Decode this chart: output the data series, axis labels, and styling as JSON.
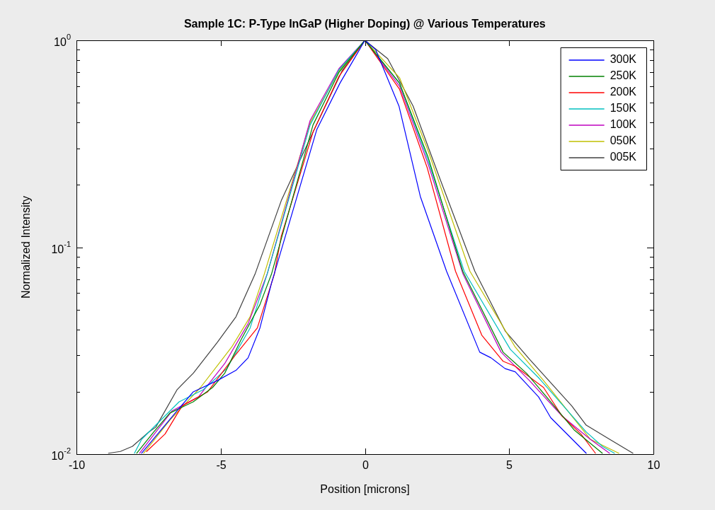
{
  "chart_data": {
    "type": "line",
    "title": "Sample 1C: P-Type InGaP (Higher Doping) @ Various Temperatures",
    "xlabel": "Position [microns]",
    "ylabel": "Normalized Intensity",
    "log": "y",
    "legend": "top right",
    "marker": "none",
    "line_style": "solid",
    "xlim": [
      -10,
      10
    ],
    "xticks": [
      -10,
      -5,
      0,
      5,
      10
    ],
    "ylim": [
      0.01,
      1
    ],
    "yticks": [
      {
        "value": 0.01,
        "label": "10$^{-2}$"
      },
      {
        "value": 0.02,
        "label": null
      },
      {
        "value": 0.03,
        "label": null
      },
      {
        "value": 0.04,
        "label": null
      },
      {
        "value": 0.05,
        "label": null
      },
      {
        "value": 0.06,
        "label": null
      },
      {
        "value": 0.07,
        "label": null
      },
      {
        "value": 0.08,
        "label": null
      },
      {
        "value": 0.09,
        "label": null
      },
      {
        "value": 0.1,
        "label": "10$^{-1}$"
      },
      {
        "value": 0.2,
        "label": null
      },
      {
        "value": 0.3,
        "label": null
      },
      {
        "value": 0.4,
        "label": null
      },
      {
        "value": 0.5,
        "label": null
      },
      {
        "value": 0.6,
        "label": null
      },
      {
        "value": 0.7,
        "label": null
      },
      {
        "value": 0.8,
        "label": null
      },
      {
        "value": 0.9,
        "label": null
      },
      {
        "value": 1,
        "label": "10$^{0}$"
      }
    ],
    "series": [
      {
        "name": "300K",
        "color": "#0000ff",
        "x": [
          -7.74,
          -6.51,
          -5.95,
          -5.11,
          -4.47,
          -4.05,
          -3.64,
          -3.24,
          -1.67,
          -0.86,
          0,
          0.37,
          1.18,
          1.92,
          2.83,
          3.98,
          4.37,
          4.86,
          5.21,
          6.02,
          6.44,
          7.67
        ],
        "values": [
          0.0101,
          0.0162,
          0.02,
          0.0227,
          0.0254,
          0.0292,
          0.0407,
          0.0669,
          0.37,
          0.623,
          1,
          0.902,
          0.481,
          0.176,
          0.0765,
          0.0311,
          0.0292,
          0.0259,
          0.025,
          0.0189,
          0.015,
          0.0101
        ]
      },
      {
        "name": "250K",
        "color": "#008000",
        "x": [
          -7.91,
          -7.32,
          -6.76,
          -5.95,
          -5.28,
          -4.86,
          -4.3,
          -3.64,
          -3.24,
          -1.8,
          -0.9,
          0,
          1.2,
          2.2,
          3.39,
          4.79,
          5.6,
          6.44,
          7.25,
          8.23
        ],
        "values": [
          0.0101,
          0.0128,
          0.0158,
          0.0179,
          0.021,
          0.0246,
          0.0356,
          0.0528,
          0.0741,
          0.39,
          0.7,
          1,
          0.62,
          0.27,
          0.0765,
          0.0311,
          0.0246,
          0.0179,
          0.0131,
          0.0101
        ]
      },
      {
        "name": "200K",
        "color": "#ff0000",
        "x": [
          -7.57,
          -6.93,
          -6.34,
          -5.45,
          -4.47,
          -3.73,
          -3.14,
          -2.9,
          -1.8,
          -0.9,
          0,
          1.2,
          2.16,
          3.14,
          4.05,
          4.79,
          5.21,
          6.19,
          6.83,
          7.49,
          7.99
        ],
        "values": [
          0.0103,
          0.0125,
          0.0171,
          0.02,
          0.0304,
          0.0407,
          0.0741,
          0.113,
          0.36,
          0.67,
          1,
          0.58,
          0.242,
          0.0765,
          0.0376,
          0.0281,
          0.0266,
          0.021,
          0.0153,
          0.0125,
          0.0101
        ]
      },
      {
        "name": "150K",
        "color": "#00bfbf",
        "x": [
          -7.99,
          -7.74,
          -6.44,
          -5.6,
          -4.79,
          -3.98,
          -3.39,
          -1.9,
          -0.9,
          0,
          1.2,
          2.2,
          3.44,
          5.04,
          6.02,
          7.67,
          8.23,
          8.65
        ],
        "values": [
          0.0101,
          0.0118,
          0.0179,
          0.0205,
          0.0259,
          0.0407,
          0.0741,
          0.39,
          0.72,
          1,
          0.62,
          0.26,
          0.0765,
          0.0321,
          0.0234,
          0.0128,
          0.0109,
          0.0101
        ]
      },
      {
        "name": "100K",
        "color": "#bf00bf",
        "x": [
          -7.81,
          -6.68,
          -5.77,
          -4.86,
          -4.05,
          -3.39,
          -1.9,
          -0.9,
          0,
          1.2,
          2.2,
          3.4,
          4.72,
          5.7,
          6.83,
          7.81,
          8.48
        ],
        "values": [
          0.0101,
          0.0162,
          0.0189,
          0.0274,
          0.0427,
          0.0741,
          0.41,
          0.73,
          1,
          0.6,
          0.25,
          0.0741,
          0.0311,
          0.0227,
          0.0153,
          0.0118,
          0.0101
        ]
      },
      {
        "name": "050K",
        "color": "#bfbf00",
        "x": [
          -7.67,
          -6.76,
          -5.7,
          -4.62,
          -3.98,
          -3.49,
          -1.9,
          -0.9,
          0,
          1.2,
          2.2,
          3.64,
          5.21,
          6.19,
          7.81,
          8.8
        ],
        "values": [
          0.0101,
          0.0146,
          0.021,
          0.0329,
          0.0461,
          0.0741,
          0.4,
          0.71,
          1,
          0.66,
          0.29,
          0.0765,
          0.0329,
          0.0227,
          0.0118,
          0.0101
        ]
      },
      {
        "name": "005K",
        "color": "#404040",
        "x": [
          -8.89,
          -8.48,
          -8.06,
          -7.49,
          -7.25,
          -6.51,
          -5.95,
          -5.11,
          -4.47,
          -3.81,
          -2.9,
          -1.84,
          -0.79,
          0,
          0.79,
          1.67,
          2.58,
          3.81,
          4.86,
          5.7,
          7.17,
          7.67,
          8.48,
          9.29
        ],
        "values": [
          0.0101,
          0.0103,
          0.0109,
          0.0128,
          0.0135,
          0.0205,
          0.0246,
          0.0348,
          0.0461,
          0.0741,
          0.168,
          0.35,
          0.713,
          1,
          0.815,
          0.481,
          0.218,
          0.0765,
          0.0394,
          0.0288,
          0.0171,
          0.0138,
          0.0118,
          0.0101
        ]
      }
    ]
  }
}
